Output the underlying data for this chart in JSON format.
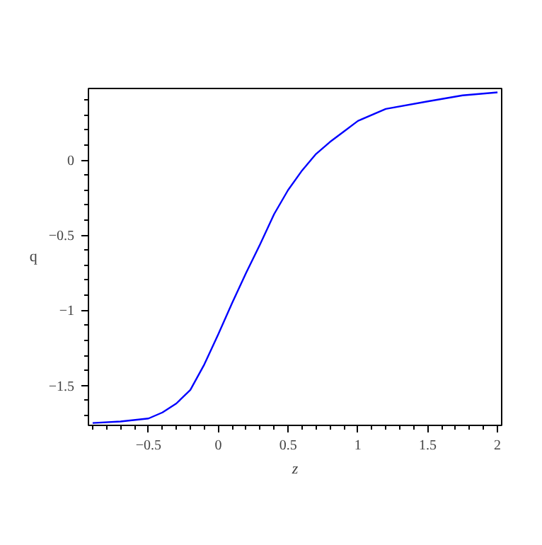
{
  "chart_data": {
    "type": "line",
    "xlabel": "z",
    "ylabel": "q",
    "x": [
      -0.9,
      -0.7,
      -0.5,
      -0.4,
      -0.3,
      -0.2,
      -0.1,
      0,
      0.1,
      0.2,
      0.3,
      0.4,
      0.5,
      0.6,
      0.7,
      0.8,
      0.9,
      1.0,
      1.2,
      1.5,
      1.75,
      2.0
    ],
    "series": [
      {
        "color": "#0000ff",
        "values": [
          -1.75,
          -1.74,
          -1.72,
          -1.68,
          -1.62,
          -1.53,
          -1.36,
          -1.16,
          -0.95,
          -0.75,
          -0.56,
          -0.36,
          -0.2,
          -0.07,
          0.04,
          0.12,
          0.19,
          0.26,
          0.34,
          0.39,
          0.43,
          0.45
        ]
      }
    ],
    "xlim": [
      -0.93,
      2.03
    ],
    "ylim": [
      -1.766,
      0.476
    ],
    "xticks": [
      {
        "value": -0.5,
        "label": "−0.5"
      },
      0,
      0.5,
      1,
      1.5,
      2
    ],
    "yticks": [
      {
        "value": -1.5,
        "label": "−1.5"
      },
      {
        "value": -1,
        "label": "−1"
      },
      {
        "value": -0.5,
        "label": "−0.5"
      },
      0
    ],
    "grid": false,
    "marker": "none",
    "line_style": "solid"
  }
}
